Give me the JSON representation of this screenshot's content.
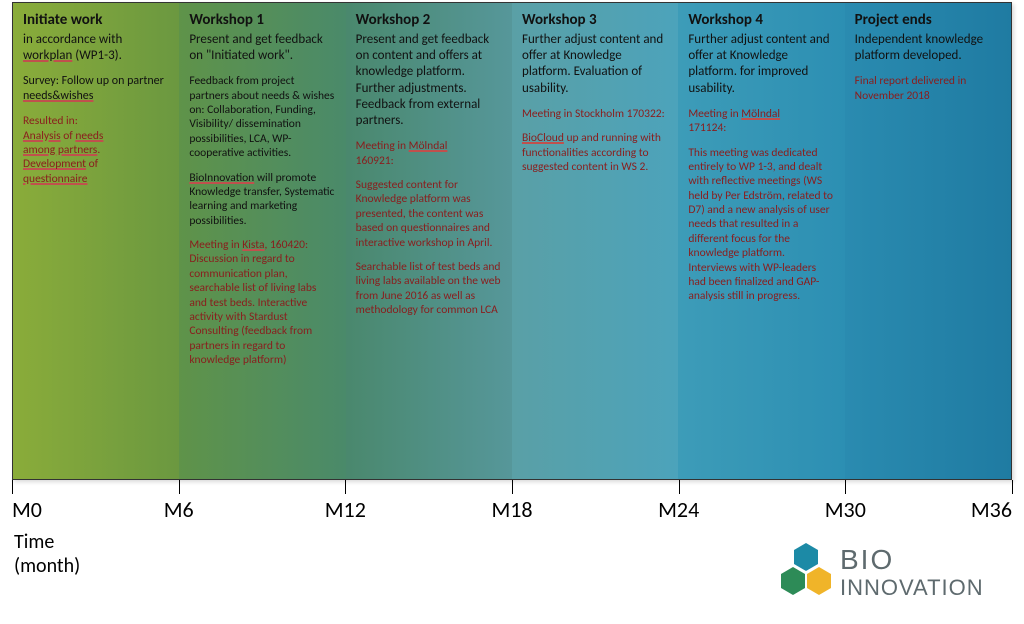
{
  "timeline": {
    "tick_positions_pct": [
      0,
      16.67,
      33.33,
      50,
      66.67,
      83.33,
      100
    ],
    "tick_labels": [
      "M0",
      "M6",
      "M12",
      "M18",
      "M24",
      "M30",
      "M36"
    ],
    "axis_label_line1": "Time",
    "axis_label_line2": "(month)"
  },
  "columns": [
    {
      "bg_gradient": [
        "#8aac3a",
        "#6b9840"
      ],
      "title": "Initiate work",
      "subtitle_html": "in accordance with <span class='u'>workplan</span> (WP1-3).",
      "blocks": [
        {
          "html": "Survey: Follow up on partner <span class='u'>needs&wishes</span>",
          "class": "subtitle"
        },
        {
          "html": "<span class='red'>Resulted in:</span><br><span class='red u'>Analysis</span> <span class='red'>of</span> <span class='red u'>needs</span><br><span class='red u'>among partners</span><span class='red'>.</span><br><span class='red u'>Development</span> <span class='red'>of</span><br><span class='red u'>questionnaire</span>",
          "class": "small"
        }
      ]
    },
    {
      "bg_gradient": [
        "#5f9349",
        "#4a8a6a"
      ],
      "title": "Workshop 1",
      "subtitle_html": "Present and get feedback on \"Initiated work\".",
      "blocks": [
        {
          "html": "Feedback from project partners about needs & wishes on: Collaboration, Funding, Visibility/ dissemination possibilities, LCA, WP-cooperative activities.",
          "class": "small"
        },
        {
          "html": "<span class='u'>BioInnovation</span> will promote Knowledge transfer, Systematic learning and marketing possibilities.",
          "class": "small"
        },
        {
          "html": "<span class='red'>Meeting in </span><span class='red u'>Kista</span><span class='red'>, 160420: Discussion in regard to communication plan, searchable list of living labs and test beds. Interactive activity with Stardust Consulting (feedback from partners in regard to knowledge platform)</span>",
          "class": "small"
        }
      ]
    },
    {
      "bg_gradient": [
        "#4a886d",
        "#56979a"
      ],
      "title": "Workshop 2",
      "subtitle_html": "Present and get feedback on content and offers at knowledge platform. Further adjustments. Feedback from external partners.",
      "blocks": [
        {
          "html": "<span class='red'>Meeting in </span><span class='red u'>Mölndal</span><br><span class='red'>160921:</span>",
          "class": "small"
        },
        {
          "html": "<span class='red'>Suggested content for Knowledge platform was presented, the content was based on questionnaires and interactive workshop in April.</span>",
          "class": "small"
        },
        {
          "html": "<span class='red'>Searchable list of test beds and living labs available on the web from June 2016 as well as methodology for common LCA</span>",
          "class": "small"
        }
      ]
    },
    {
      "bg_gradient": [
        "#5aa0a6",
        "#4ca3bb"
      ],
      "title": "Workshop 3",
      "subtitle_html": "Further adjust content and offer at Knowledge platform. Evaluation of usability.",
      "blocks": [
        {
          "html": "<span class='red'>Meeting in Stockholm 170322:</span>",
          "class": "small"
        },
        {
          "html": "<span class='red u'>BioCloud</span> <span class='red'>up and running with functionalities according to suggested content in WS 2.</span>",
          "class": "small"
        }
      ]
    },
    {
      "bg_gradient": [
        "#3d9cb8",
        "#2c8fb3"
      ],
      "title": "Workshop 4",
      "subtitle_html": "Further adjust content and offer at Knowledge platform. for improved usability.",
      "blocks": [
        {
          "html": "<span class='red'>Meeting in </span><span class='red u'>Mölndal</span><br><span class='red'>171124:</span>",
          "class": "small"
        },
        {
          "html": "<span class='red'>This meeting was dedicated entirely to WP 1-3, and dealt with reflective meetings (WS held by Per Edström, related to D7) and a new analysis of user needs that resulted in a different focus for the knowledge platform. Interviews with WP-leaders had been finalized and GAP-analysis still in progress.</span>",
          "class": "small"
        }
      ]
    },
    {
      "bg_gradient": [
        "#2a8bb0",
        "#1f7ba2"
      ],
      "title": "Project ends",
      "subtitle_html": "Independent knowledge platform developed.",
      "blocks": [
        {
          "html": "<span class='red'>Final report delivered in November 2018</span>",
          "class": "small"
        }
      ]
    }
  ],
  "logo": {
    "text_top": "BIO",
    "text_bottom": "INNOVATION",
    "hex_colors": [
      "#1c8aa6",
      "#2d8b57",
      "#f0b429"
    ],
    "text_color": "#5e6a6e"
  }
}
